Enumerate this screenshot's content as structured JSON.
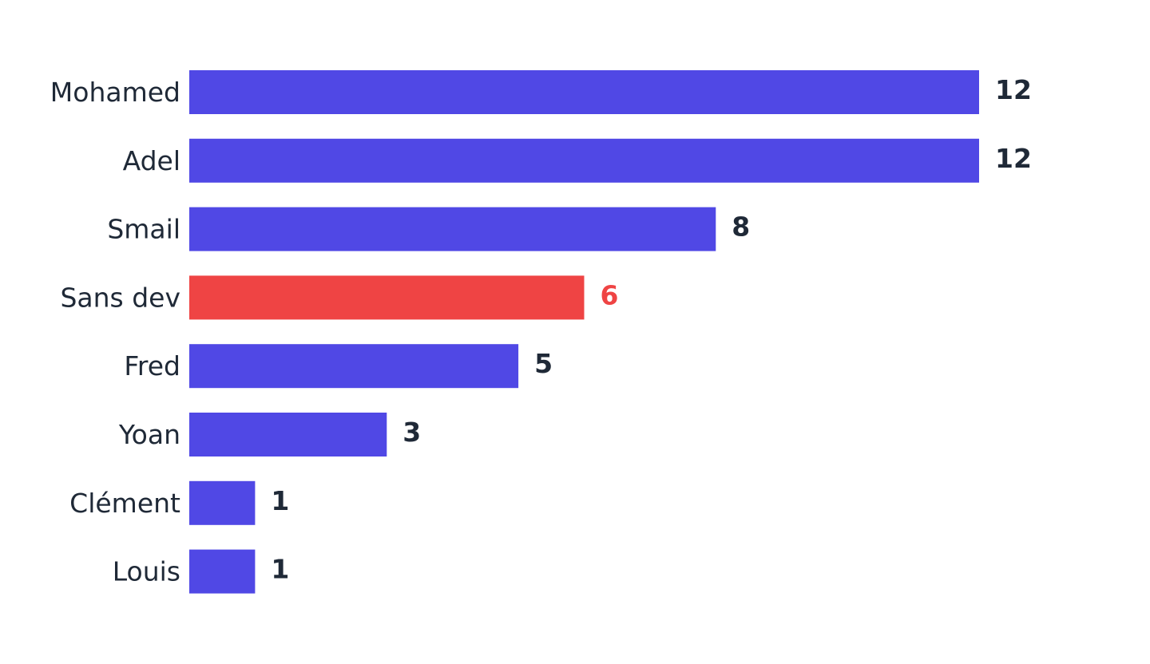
{
  "chart_data": {
    "type": "bar",
    "orientation": "horizontal",
    "title": "",
    "xlabel": "",
    "ylabel": "",
    "categories": [
      "Mohamed",
      "Adel",
      "Smail",
      "Sans dev",
      "Fred",
      "Yoan",
      "Clément",
      "Louis"
    ],
    "values": [
      12,
      12,
      8,
      6,
      5,
      3,
      1,
      1
    ],
    "bar_colors": [
      "#5048e5",
      "#5048e5",
      "#5048e5",
      "#ef4444",
      "#5048e5",
      "#5048e5",
      "#5048e5",
      "#5048e5"
    ],
    "value_label_colors": [
      "#1f2937",
      "#1f2937",
      "#1f2937",
      "#ef4444",
      "#1f2937",
      "#1f2937",
      "#1f2937",
      "#1f2937"
    ],
    "highlight_category": "Sans dev",
    "xlim": [
      0,
      12
    ],
    "grid": false,
    "axes_visible": false,
    "data_labels": true
  }
}
